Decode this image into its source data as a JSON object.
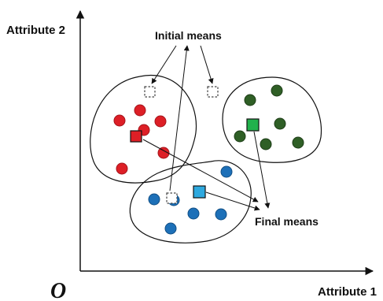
{
  "labels": {
    "y_axis": "Attribute 2",
    "x_axis": "Attribute 1",
    "origin": "O",
    "initial_means": "Initial means",
    "final_means": "Final means"
  },
  "colors": {
    "red": "#dd1f26",
    "dark_red": "#a4151c",
    "green_point": "#2f5f26",
    "green_mean": "#22b14c",
    "blue_point": "#1d70b8",
    "blue_mean": "#2ea9df",
    "stroke": "#111111",
    "initial_mean_stroke": "#444444"
  },
  "clusters": [
    {
      "name": "red",
      "point_count": 7,
      "mean_marker": "square"
    },
    {
      "name": "green",
      "point_count": 6,
      "mean_marker": "square"
    },
    {
      "name": "blue",
      "point_count": 7,
      "mean_marker": "square"
    }
  ],
  "initial_means_count": 3
}
